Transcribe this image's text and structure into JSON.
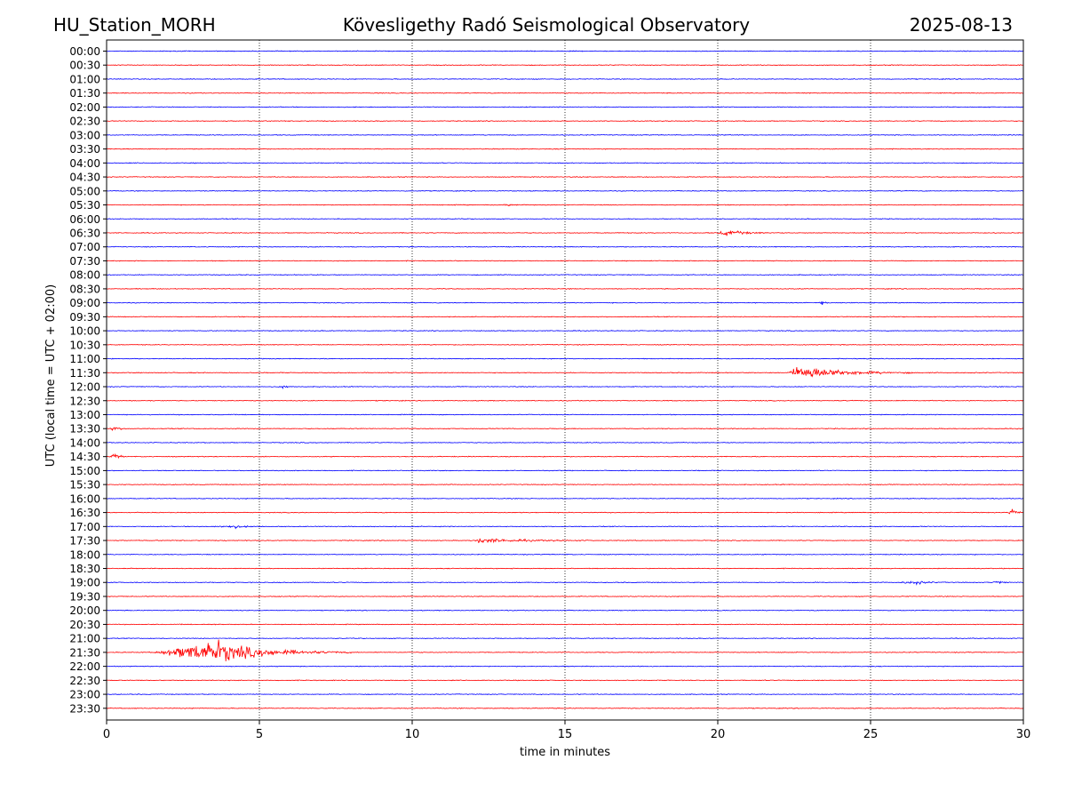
{
  "header": {
    "station": "HU_Station_MORH",
    "title": "Kövesligethy Radó Seismological Observatory",
    "date": "2025-08-13"
  },
  "chart_data": {
    "type": "line",
    "title": "Kövesligethy Radó Seismological Observatory",
    "xlabel": "time in minutes",
    "ylabel": "UTC (local time = UTC + 02:00)",
    "xlim": [
      0,
      30
    ],
    "xticks": [
      0,
      5,
      10,
      15,
      20,
      25,
      30
    ],
    "grid": "vertical dotted at each x tick",
    "row_labels": [
      "00:00",
      "00:30",
      "01:00",
      "01:30",
      "02:00",
      "02:30",
      "03:00",
      "03:30",
      "04:00",
      "04:30",
      "05:00",
      "05:30",
      "06:00",
      "06:30",
      "07:00",
      "07:30",
      "08:00",
      "08:30",
      "09:00",
      "09:30",
      "10:00",
      "10:30",
      "11:00",
      "11:30",
      "12:00",
      "12:30",
      "13:00",
      "13:30",
      "14:00",
      "14:30",
      "15:00",
      "15:30",
      "16:00",
      "16:30",
      "17:00",
      "17:30",
      "18:00",
      "18:30",
      "19:00",
      "19:30",
      "20:00",
      "20:30",
      "21:00",
      "21:30",
      "22:00",
      "22:30",
      "23:00",
      "23:30"
    ],
    "row_colors": [
      "#0000ff",
      "#ff0000"
    ],
    "background_noise": 0.6,
    "events": [
      {
        "row": 5.5,
        "start": 12.9,
        "peak": 13.1,
        "end": 13.8,
        "amp": 1.5
      },
      {
        "row": 6.5,
        "start": 19.9,
        "peak": 20.3,
        "end": 22.0,
        "amp": 4.0
      },
      {
        "row": 9.0,
        "start": 23.3,
        "peak": 23.4,
        "end": 23.7,
        "amp": 3.5
      },
      {
        "row": 11.5,
        "start": 22.3,
        "peak": 22.7,
        "end": 26.5,
        "amp": 11.0
      },
      {
        "row": 12.0,
        "start": 5.6,
        "peak": 5.8,
        "end": 6.1,
        "amp": 2.0
      },
      {
        "row": 13.5,
        "start": 0.0,
        "peak": 0.3,
        "end": 0.8,
        "amp": 2.5
      },
      {
        "row": 14.5,
        "start": 0.1,
        "peak": 0.25,
        "end": 0.7,
        "amp": 5.0
      },
      {
        "row": 16.5,
        "start": 29.5,
        "peak": 29.6,
        "end": 30.0,
        "amp": 7.0
      },
      {
        "row": 17.0,
        "start": 3.5,
        "peak": 4.2,
        "end": 5.0,
        "amp": 2.0
      },
      {
        "row": 17.5,
        "start": 11.9,
        "peak": 12.2,
        "end": 16.0,
        "amp": 3.5
      },
      {
        "row": 19.0,
        "start": 25.9,
        "peak": 26.5,
        "end": 27.5,
        "amp": 2.5
      },
      {
        "row": 19.0,
        "start": 28.9,
        "peak": 29.2,
        "end": 29.6,
        "amp": 2.0
      },
      {
        "row": 21.5,
        "start": 1.5,
        "peak": 3.6,
        "end": 8.0,
        "amp": 17.0
      }
    ]
  }
}
